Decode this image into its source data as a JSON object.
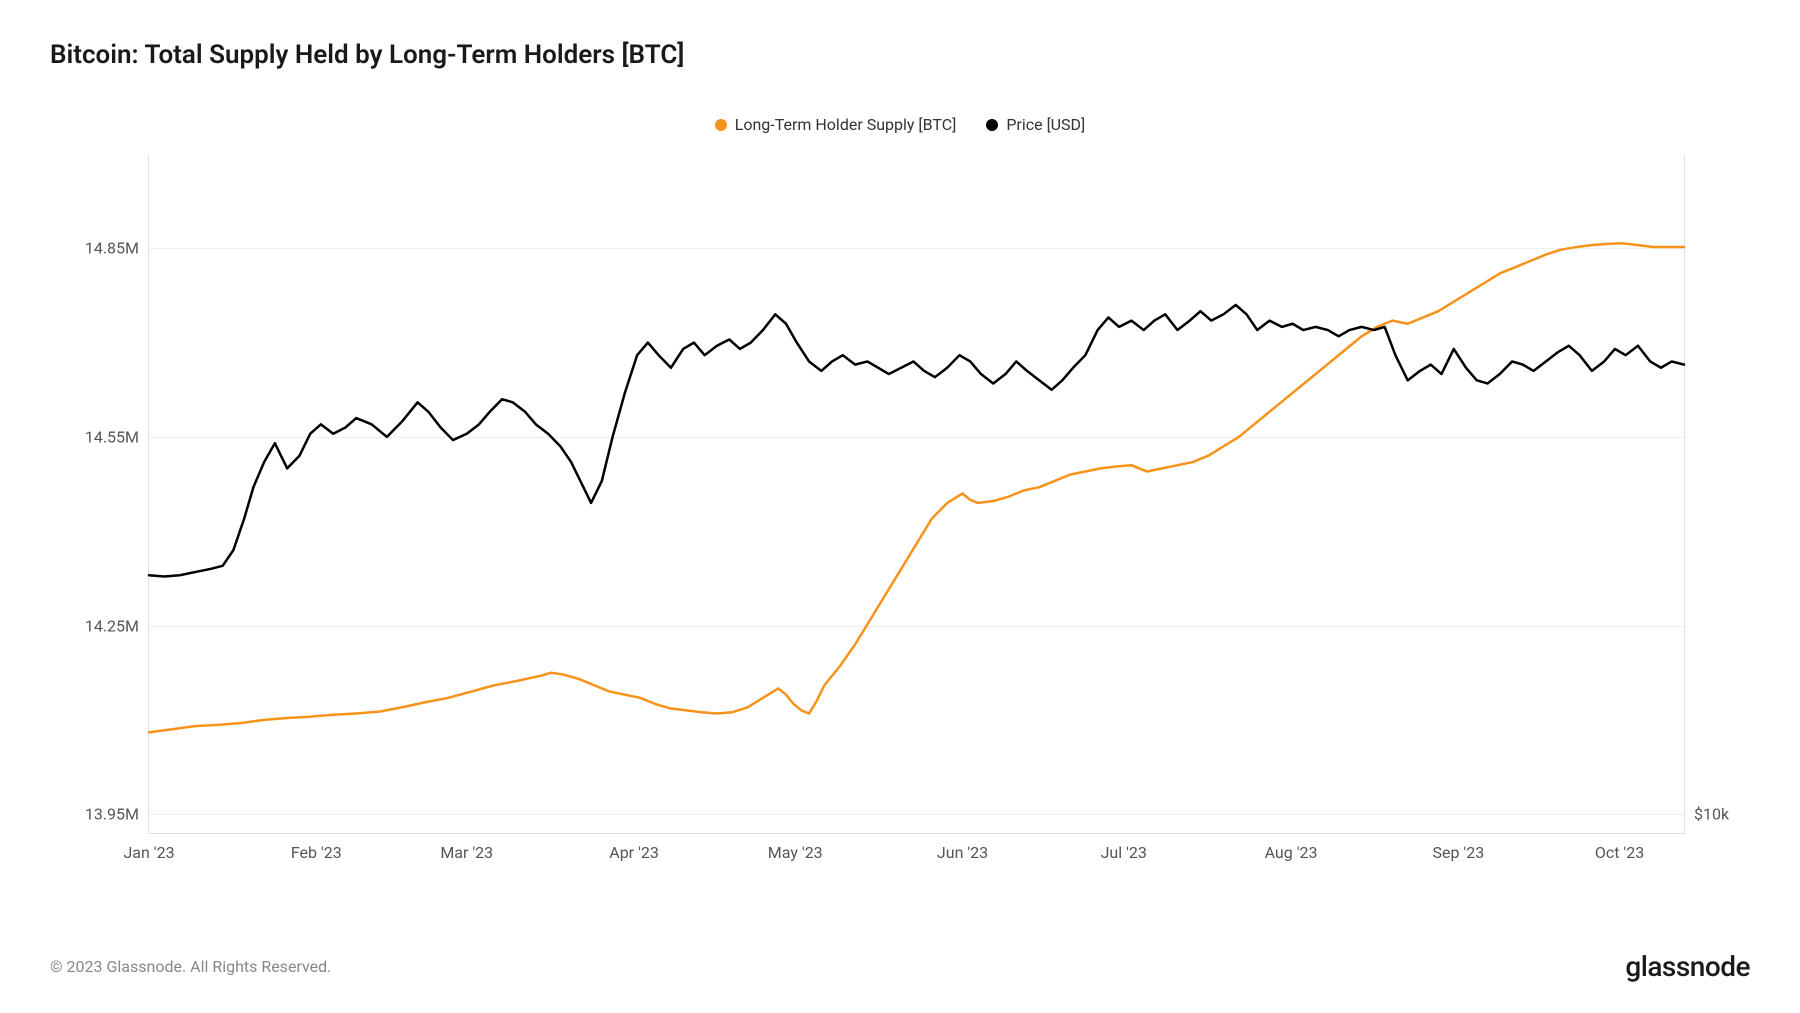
{
  "title": "Bitcoin: Total Supply Held by Long-Term Holders [BTC]",
  "legend": {
    "series1": {
      "label": "Long-Term Holder Supply [BTC]",
      "color": "#f7931a"
    },
    "series2": {
      "label": "Price [USD]",
      "color": "#000000"
    }
  },
  "chart": {
    "type": "line",
    "background_color": "#ffffff",
    "grid_color": "#eeeeee",
    "axis_color": "#e0e0e0",
    "text_color": "#555555",
    "line_width": 2.5,
    "y_axis_left": {
      "min": 13.92,
      "max": 15.0,
      "ticks": [
        {
          "value": 13.95,
          "label": "13.95M"
        },
        {
          "value": 14.25,
          "label": "14.25M"
        },
        {
          "value": 14.55,
          "label": "14.55M"
        },
        {
          "value": 14.85,
          "label": "14.85M"
        }
      ]
    },
    "y_axis_right": {
      "ticks": [
        {
          "value": 13.95,
          "label": "$10k"
        }
      ]
    },
    "x_axis": {
      "labels": [
        "Jan '23",
        "Feb '23",
        "Mar '23",
        "Apr '23",
        "May '23",
        "Jun '23",
        "Jul '23",
        "Aug '23",
        "Sep '23",
        "Oct '23"
      ],
      "positions": [
        0,
        0.109,
        0.207,
        0.316,
        0.421,
        0.53,
        0.635,
        0.744,
        0.853,
        0.958
      ]
    },
    "series_supply": {
      "color": "#f7931a",
      "data": [
        [
          0.0,
          14.08
        ],
        [
          0.015,
          14.085
        ],
        [
          0.03,
          14.09
        ],
        [
          0.045,
          14.092
        ],
        [
          0.06,
          14.095
        ],
        [
          0.075,
          14.1
        ],
        [
          0.09,
          14.103
        ],
        [
          0.105,
          14.105
        ],
        [
          0.12,
          14.108
        ],
        [
          0.135,
          14.11
        ],
        [
          0.15,
          14.113
        ],
        [
          0.165,
          14.12
        ],
        [
          0.18,
          14.128
        ],
        [
          0.195,
          14.135
        ],
        [
          0.21,
          14.145
        ],
        [
          0.225,
          14.155
        ],
        [
          0.24,
          14.162
        ],
        [
          0.255,
          14.17
        ],
        [
          0.262,
          14.175
        ],
        [
          0.27,
          14.172
        ],
        [
          0.28,
          14.165
        ],
        [
          0.29,
          14.155
        ],
        [
          0.3,
          14.145
        ],
        [
          0.31,
          14.14
        ],
        [
          0.32,
          14.135
        ],
        [
          0.33,
          14.125
        ],
        [
          0.34,
          14.118
        ],
        [
          0.35,
          14.115
        ],
        [
          0.36,
          14.112
        ],
        [
          0.37,
          14.11
        ],
        [
          0.38,
          14.112
        ],
        [
          0.39,
          14.12
        ],
        [
          0.4,
          14.135
        ],
        [
          0.41,
          14.15
        ],
        [
          0.415,
          14.14
        ],
        [
          0.42,
          14.125
        ],
        [
          0.425,
          14.115
        ],
        [
          0.43,
          14.11
        ],
        [
          0.435,
          14.13
        ],
        [
          0.44,
          14.155
        ],
        [
          0.45,
          14.185
        ],
        [
          0.46,
          14.22
        ],
        [
          0.47,
          14.26
        ],
        [
          0.48,
          14.3
        ],
        [
          0.49,
          14.34
        ],
        [
          0.5,
          14.38
        ],
        [
          0.51,
          14.42
        ],
        [
          0.52,
          14.445
        ],
        [
          0.53,
          14.46
        ],
        [
          0.535,
          14.45
        ],
        [
          0.54,
          14.445
        ],
        [
          0.55,
          14.448
        ],
        [
          0.56,
          14.455
        ],
        [
          0.57,
          14.465
        ],
        [
          0.58,
          14.47
        ],
        [
          0.59,
          14.48
        ],
        [
          0.6,
          14.49
        ],
        [
          0.61,
          14.495
        ],
        [
          0.62,
          14.5
        ],
        [
          0.63,
          14.503
        ],
        [
          0.64,
          14.505
        ],
        [
          0.65,
          14.495
        ],
        [
          0.66,
          14.5
        ],
        [
          0.67,
          14.505
        ],
        [
          0.68,
          14.51
        ],
        [
          0.69,
          14.52
        ],
        [
          0.7,
          14.535
        ],
        [
          0.71,
          14.55
        ],
        [
          0.72,
          14.57
        ],
        [
          0.73,
          14.59
        ],
        [
          0.74,
          14.61
        ],
        [
          0.75,
          14.63
        ],
        [
          0.76,
          14.65
        ],
        [
          0.77,
          14.67
        ],
        [
          0.78,
          14.69
        ],
        [
          0.79,
          14.71
        ],
        [
          0.8,
          14.725
        ],
        [
          0.81,
          14.735
        ],
        [
          0.82,
          14.73
        ],
        [
          0.83,
          14.74
        ],
        [
          0.84,
          14.75
        ],
        [
          0.85,
          14.765
        ],
        [
          0.86,
          14.78
        ],
        [
          0.87,
          14.795
        ],
        [
          0.88,
          14.81
        ],
        [
          0.89,
          14.82
        ],
        [
          0.9,
          14.83
        ],
        [
          0.91,
          14.84
        ],
        [
          0.92,
          14.848
        ],
        [
          0.93,
          14.852
        ],
        [
          0.94,
          14.855
        ],
        [
          0.95,
          14.857
        ],
        [
          0.96,
          14.858
        ],
        [
          0.97,
          14.855
        ],
        [
          0.98,
          14.852
        ],
        [
          0.99,
          14.852
        ],
        [
          1.0,
          14.852
        ]
      ]
    },
    "series_price": {
      "color": "#000000",
      "data": [
        [
          0.0,
          14.33
        ],
        [
          0.01,
          14.328
        ],
        [
          0.02,
          14.33
        ],
        [
          0.03,
          14.335
        ],
        [
          0.04,
          14.34
        ],
        [
          0.048,
          14.345
        ],
        [
          0.055,
          14.37
        ],
        [
          0.062,
          14.42
        ],
        [
          0.068,
          14.47
        ],
        [
          0.075,
          14.51
        ],
        [
          0.082,
          14.54
        ],
        [
          0.09,
          14.5
        ],
        [
          0.098,
          14.52
        ],
        [
          0.105,
          14.555
        ],
        [
          0.112,
          14.57
        ],
        [
          0.12,
          14.555
        ],
        [
          0.128,
          14.565
        ],
        [
          0.135,
          14.58
        ],
        [
          0.145,
          14.57
        ],
        [
          0.155,
          14.55
        ],
        [
          0.165,
          14.575
        ],
        [
          0.175,
          14.605
        ],
        [
          0.182,
          14.59
        ],
        [
          0.19,
          14.565
        ],
        [
          0.198,
          14.545
        ],
        [
          0.207,
          14.555
        ],
        [
          0.215,
          14.57
        ],
        [
          0.222,
          14.59
        ],
        [
          0.23,
          14.61
        ],
        [
          0.237,
          14.605
        ],
        [
          0.245,
          14.59
        ],
        [
          0.252,
          14.57
        ],
        [
          0.26,
          14.555
        ],
        [
          0.268,
          14.535
        ],
        [
          0.275,
          14.51
        ],
        [
          0.282,
          14.475
        ],
        [
          0.288,
          14.445
        ],
        [
          0.295,
          14.48
        ],
        [
          0.302,
          14.55
        ],
        [
          0.31,
          14.62
        ],
        [
          0.318,
          14.68
        ],
        [
          0.325,
          14.7
        ],
        [
          0.332,
          14.68
        ],
        [
          0.34,
          14.66
        ],
        [
          0.348,
          14.69
        ],
        [
          0.355,
          14.7
        ],
        [
          0.362,
          14.68
        ],
        [
          0.37,
          14.695
        ],
        [
          0.378,
          14.705
        ],
        [
          0.385,
          14.69
        ],
        [
          0.392,
          14.7
        ],
        [
          0.4,
          14.72
        ],
        [
          0.408,
          14.745
        ],
        [
          0.415,
          14.73
        ],
        [
          0.422,
          14.7
        ],
        [
          0.43,
          14.67
        ],
        [
          0.438,
          14.655
        ],
        [
          0.445,
          14.67
        ],
        [
          0.452,
          14.68
        ],
        [
          0.46,
          14.665
        ],
        [
          0.468,
          14.67
        ],
        [
          0.475,
          14.66
        ],
        [
          0.482,
          14.65
        ],
        [
          0.49,
          14.66
        ],
        [
          0.498,
          14.67
        ],
        [
          0.505,
          14.655
        ],
        [
          0.512,
          14.645
        ],
        [
          0.52,
          14.66
        ],
        [
          0.528,
          14.68
        ],
        [
          0.535,
          14.67
        ],
        [
          0.542,
          14.65
        ],
        [
          0.55,
          14.635
        ],
        [
          0.558,
          14.65
        ],
        [
          0.565,
          14.67
        ],
        [
          0.572,
          14.655
        ],
        [
          0.58,
          14.64
        ],
        [
          0.588,
          14.625
        ],
        [
          0.595,
          14.64
        ],
        [
          0.602,
          14.66
        ],
        [
          0.61,
          14.68
        ],
        [
          0.618,
          14.72
        ],
        [
          0.625,
          14.74
        ],
        [
          0.632,
          14.725
        ],
        [
          0.64,
          14.735
        ],
        [
          0.648,
          14.72
        ],
        [
          0.655,
          14.735
        ],
        [
          0.662,
          14.745
        ],
        [
          0.67,
          14.72
        ],
        [
          0.678,
          14.735
        ],
        [
          0.685,
          14.75
        ],
        [
          0.692,
          14.735
        ],
        [
          0.7,
          14.745
        ],
        [
          0.708,
          14.76
        ],
        [
          0.715,
          14.745
        ],
        [
          0.722,
          14.72
        ],
        [
          0.73,
          14.735
        ],
        [
          0.738,
          14.725
        ],
        [
          0.745,
          14.73
        ],
        [
          0.752,
          14.72
        ],
        [
          0.76,
          14.725
        ],
        [
          0.768,
          14.72
        ],
        [
          0.775,
          14.71
        ],
        [
          0.782,
          14.72
        ],
        [
          0.79,
          14.725
        ],
        [
          0.798,
          14.72
        ],
        [
          0.805,
          14.725
        ],
        [
          0.812,
          14.68
        ],
        [
          0.82,
          14.64
        ],
        [
          0.828,
          14.655
        ],
        [
          0.835,
          14.665
        ],
        [
          0.842,
          14.65
        ],
        [
          0.85,
          14.69
        ],
        [
          0.858,
          14.66
        ],
        [
          0.865,
          14.64
        ],
        [
          0.872,
          14.635
        ],
        [
          0.88,
          14.65
        ],
        [
          0.888,
          14.67
        ],
        [
          0.895,
          14.665
        ],
        [
          0.902,
          14.655
        ],
        [
          0.91,
          14.67
        ],
        [
          0.918,
          14.685
        ],
        [
          0.925,
          14.695
        ],
        [
          0.932,
          14.68
        ],
        [
          0.94,
          14.655
        ],
        [
          0.948,
          14.67
        ],
        [
          0.955,
          14.69
        ],
        [
          0.962,
          14.68
        ],
        [
          0.97,
          14.695
        ],
        [
          0.978,
          14.67
        ],
        [
          0.985,
          14.66
        ],
        [
          0.992,
          14.67
        ],
        [
          1.0,
          14.665
        ]
      ]
    }
  },
  "footer": {
    "copyright": "© 2023 Glassnode. All Rights Reserved.",
    "brand": "glassnode"
  }
}
